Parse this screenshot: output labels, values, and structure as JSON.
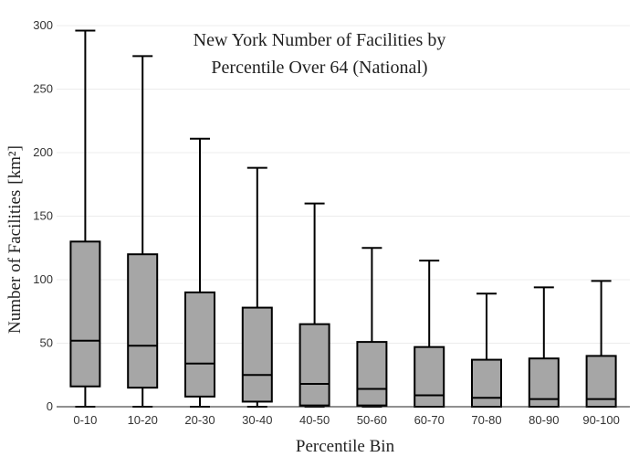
{
  "chart_data": {
    "type": "box",
    "title_lines": [
      "New York Number of Facilities by",
      "Percentile Over 64 (National)"
    ],
    "xlabel": "Percentile Bin",
    "ylabel": "Number of Facilities",
    "ylabel_unit": "[km²]",
    "ylim": [
      0,
      300
    ],
    "yticks": [
      0,
      50,
      100,
      150,
      200,
      250,
      300
    ],
    "grid": true,
    "categories": [
      "0-10",
      "10-20",
      "20-30",
      "30-40",
      "40-50",
      "50-60",
      "60-70",
      "70-80",
      "80-90",
      "90-100"
    ],
    "boxes": [
      {
        "min": 0,
        "q1": 16,
        "median": 52,
        "q3": 130,
        "max": 296
      },
      {
        "min": 0,
        "q1": 15,
        "median": 48,
        "q3": 120,
        "max": 276
      },
      {
        "min": 0,
        "q1": 8,
        "median": 34,
        "q3": 90,
        "max": 211
      },
      {
        "min": 0,
        "q1": 4,
        "median": 25,
        "q3": 78,
        "max": 188
      },
      {
        "min": 0,
        "q1": 1,
        "median": 18,
        "q3": 65,
        "max": 160
      },
      {
        "min": 0,
        "q1": 1,
        "median": 14,
        "q3": 51,
        "max": 125
      },
      {
        "min": 0,
        "q1": 0,
        "median": 9,
        "q3": 47,
        "max": 115
      },
      {
        "min": 0,
        "q1": 0,
        "median": 7,
        "q3": 37,
        "max": 89
      },
      {
        "min": 0,
        "q1": 0,
        "median": 6,
        "q3": 38,
        "max": 94
      },
      {
        "min": 0,
        "q1": 0,
        "median": 6,
        "q3": 40,
        "max": 99
      }
    ]
  }
}
